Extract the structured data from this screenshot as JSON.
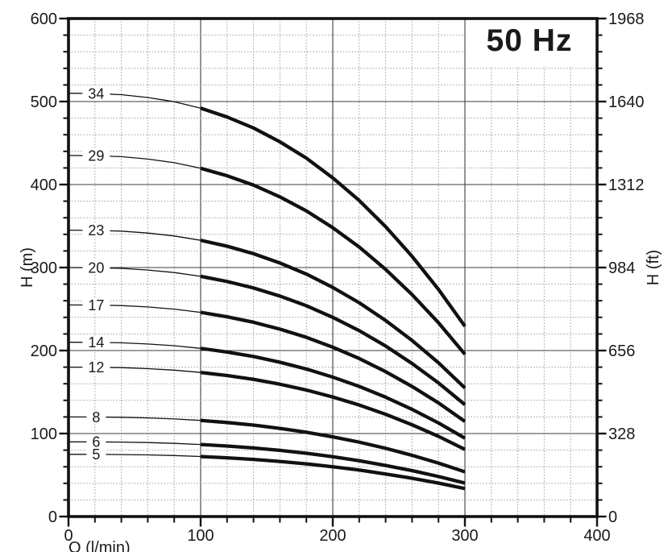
{
  "title": "50 Hz",
  "axes": {
    "x": {
      "title": "Q (l/min)",
      "min": 0,
      "max": 400,
      "major_step": 100,
      "minor_step": 20,
      "major_tick_labels": [
        "0",
        "100",
        "200",
        "300",
        "400"
      ]
    },
    "y_left": {
      "title": "H (m)",
      "min": 0,
      "max": 600,
      "major_step": 100,
      "minor_step": 20,
      "major_tick_labels": [
        "0",
        "100",
        "200",
        "300",
        "400",
        "500",
        "600"
      ]
    },
    "y_right": {
      "title": "H (ft)",
      "major_tick_labels": [
        "0",
        "328",
        "656",
        "984",
        "1312",
        "1640",
        "1968"
      ]
    }
  },
  "chart_data": {
    "type": "line",
    "title": "50 Hz",
    "xlabel": "Q (l/min)",
    "ylabel_left": "H (m)",
    "ylabel_right": "H (ft)",
    "xlim": [
      0,
      400
    ],
    "ylim_left": [
      0,
      600
    ],
    "ylim_right": [
      0,
      1968
    ],
    "grid": "major solid every 100, minor dotted every 20",
    "legend_position": "labels at curve start, left side",
    "x_values": [
      0,
      20,
      40,
      60,
      80,
      100,
      120,
      140,
      160,
      180,
      200,
      220,
      240,
      260,
      280,
      300
    ],
    "thin_until_q": 100,
    "label_q": 21,
    "series": [
      {
        "label": "34",
        "stages": 34,
        "values": [
          510,
          509.7,
          508.3,
          504.9,
          499.8,
          492.0,
          481.4,
          468.2,
          451.5,
          431.8,
          408.0,
          380.8,
          349.2,
          313.5,
          273.7,
          229.2
        ]
      },
      {
        "label": "29",
        "stages": 29,
        "values": [
          435,
          434.7,
          433.6,
          430.7,
          426.3,
          419.6,
          410.6,
          399.3,
          385.1,
          368.3,
          348.0,
          324.8,
          297.8,
          267.4,
          233.5,
          195.5
        ]
      },
      {
        "label": "23",
        "stages": 23,
        "values": [
          345,
          344.8,
          343.9,
          341.6,
          338.1,
          332.8,
          325.7,
          316.7,
          305.4,
          292.1,
          276.0,
          257.6,
          236.2,
          212.1,
          185.2,
          155.0
        ]
      },
      {
        "label": "20",
        "stages": 20,
        "values": [
          300,
          299.8,
          299.0,
          297.0,
          294.0,
          289.4,
          283.2,
          275.4,
          265.6,
          254.0,
          240.0,
          224.0,
          205.4,
          184.4,
          161.0,
          134.8
        ]
      },
      {
        "label": "17",
        "stages": 17,
        "values": [
          255,
          254.8,
          254.2,
          252.5,
          249.9,
          246.0,
          240.7,
          234.1,
          225.8,
          215.9,
          204.0,
          190.4,
          174.6,
          156.7,
          136.9,
          114.6
        ]
      },
      {
        "label": "14",
        "stages": 14,
        "values": [
          210,
          209.9,
          209.3,
          207.9,
          205.8,
          202.6,
          198.2,
          192.8,
          185.9,
          177.8,
          168.0,
          156.8,
          143.8,
          129.1,
          112.7,
          94.4
        ]
      },
      {
        "label": "12",
        "stages": 12,
        "values": [
          180,
          179.9,
          179.4,
          178.2,
          176.4,
          173.6,
          169.9,
          165.2,
          159.4,
          152.4,
          144.0,
          134.4,
          123.2,
          110.6,
          96.6,
          80.9
        ]
      },
      {
        "label": "8",
        "stages": 8,
        "values": [
          120,
          119.9,
          119.6,
          118.8,
          117.6,
          115.8,
          113.3,
          110.2,
          106.2,
          101.6,
          96.0,
          89.6,
          82.2,
          73.8,
          64.4,
          53.9
        ]
      },
      {
        "label": "6",
        "stages": 6,
        "values": [
          90,
          89.9,
          89.7,
          89.1,
          88.2,
          86.8,
          85.0,
          82.6,
          79.7,
          76.2,
          72.0,
          67.2,
          61.6,
          55.3,
          48.3,
          40.4
        ]
      },
      {
        "label": "5",
        "stages": 5,
        "values": [
          75,
          75.0,
          74.7,
          74.3,
          73.5,
          72.3,
          70.8,
          68.8,
          66.4,
          63.5,
          60.0,
          56.0,
          51.3,
          46.1,
          40.3,
          33.7
        ]
      }
    ]
  },
  "colors": {
    "ink": "#111111",
    "major_grid": "#3d3d3d",
    "minor_grid": "#9b9b9b",
    "background": "#ffffff"
  }
}
